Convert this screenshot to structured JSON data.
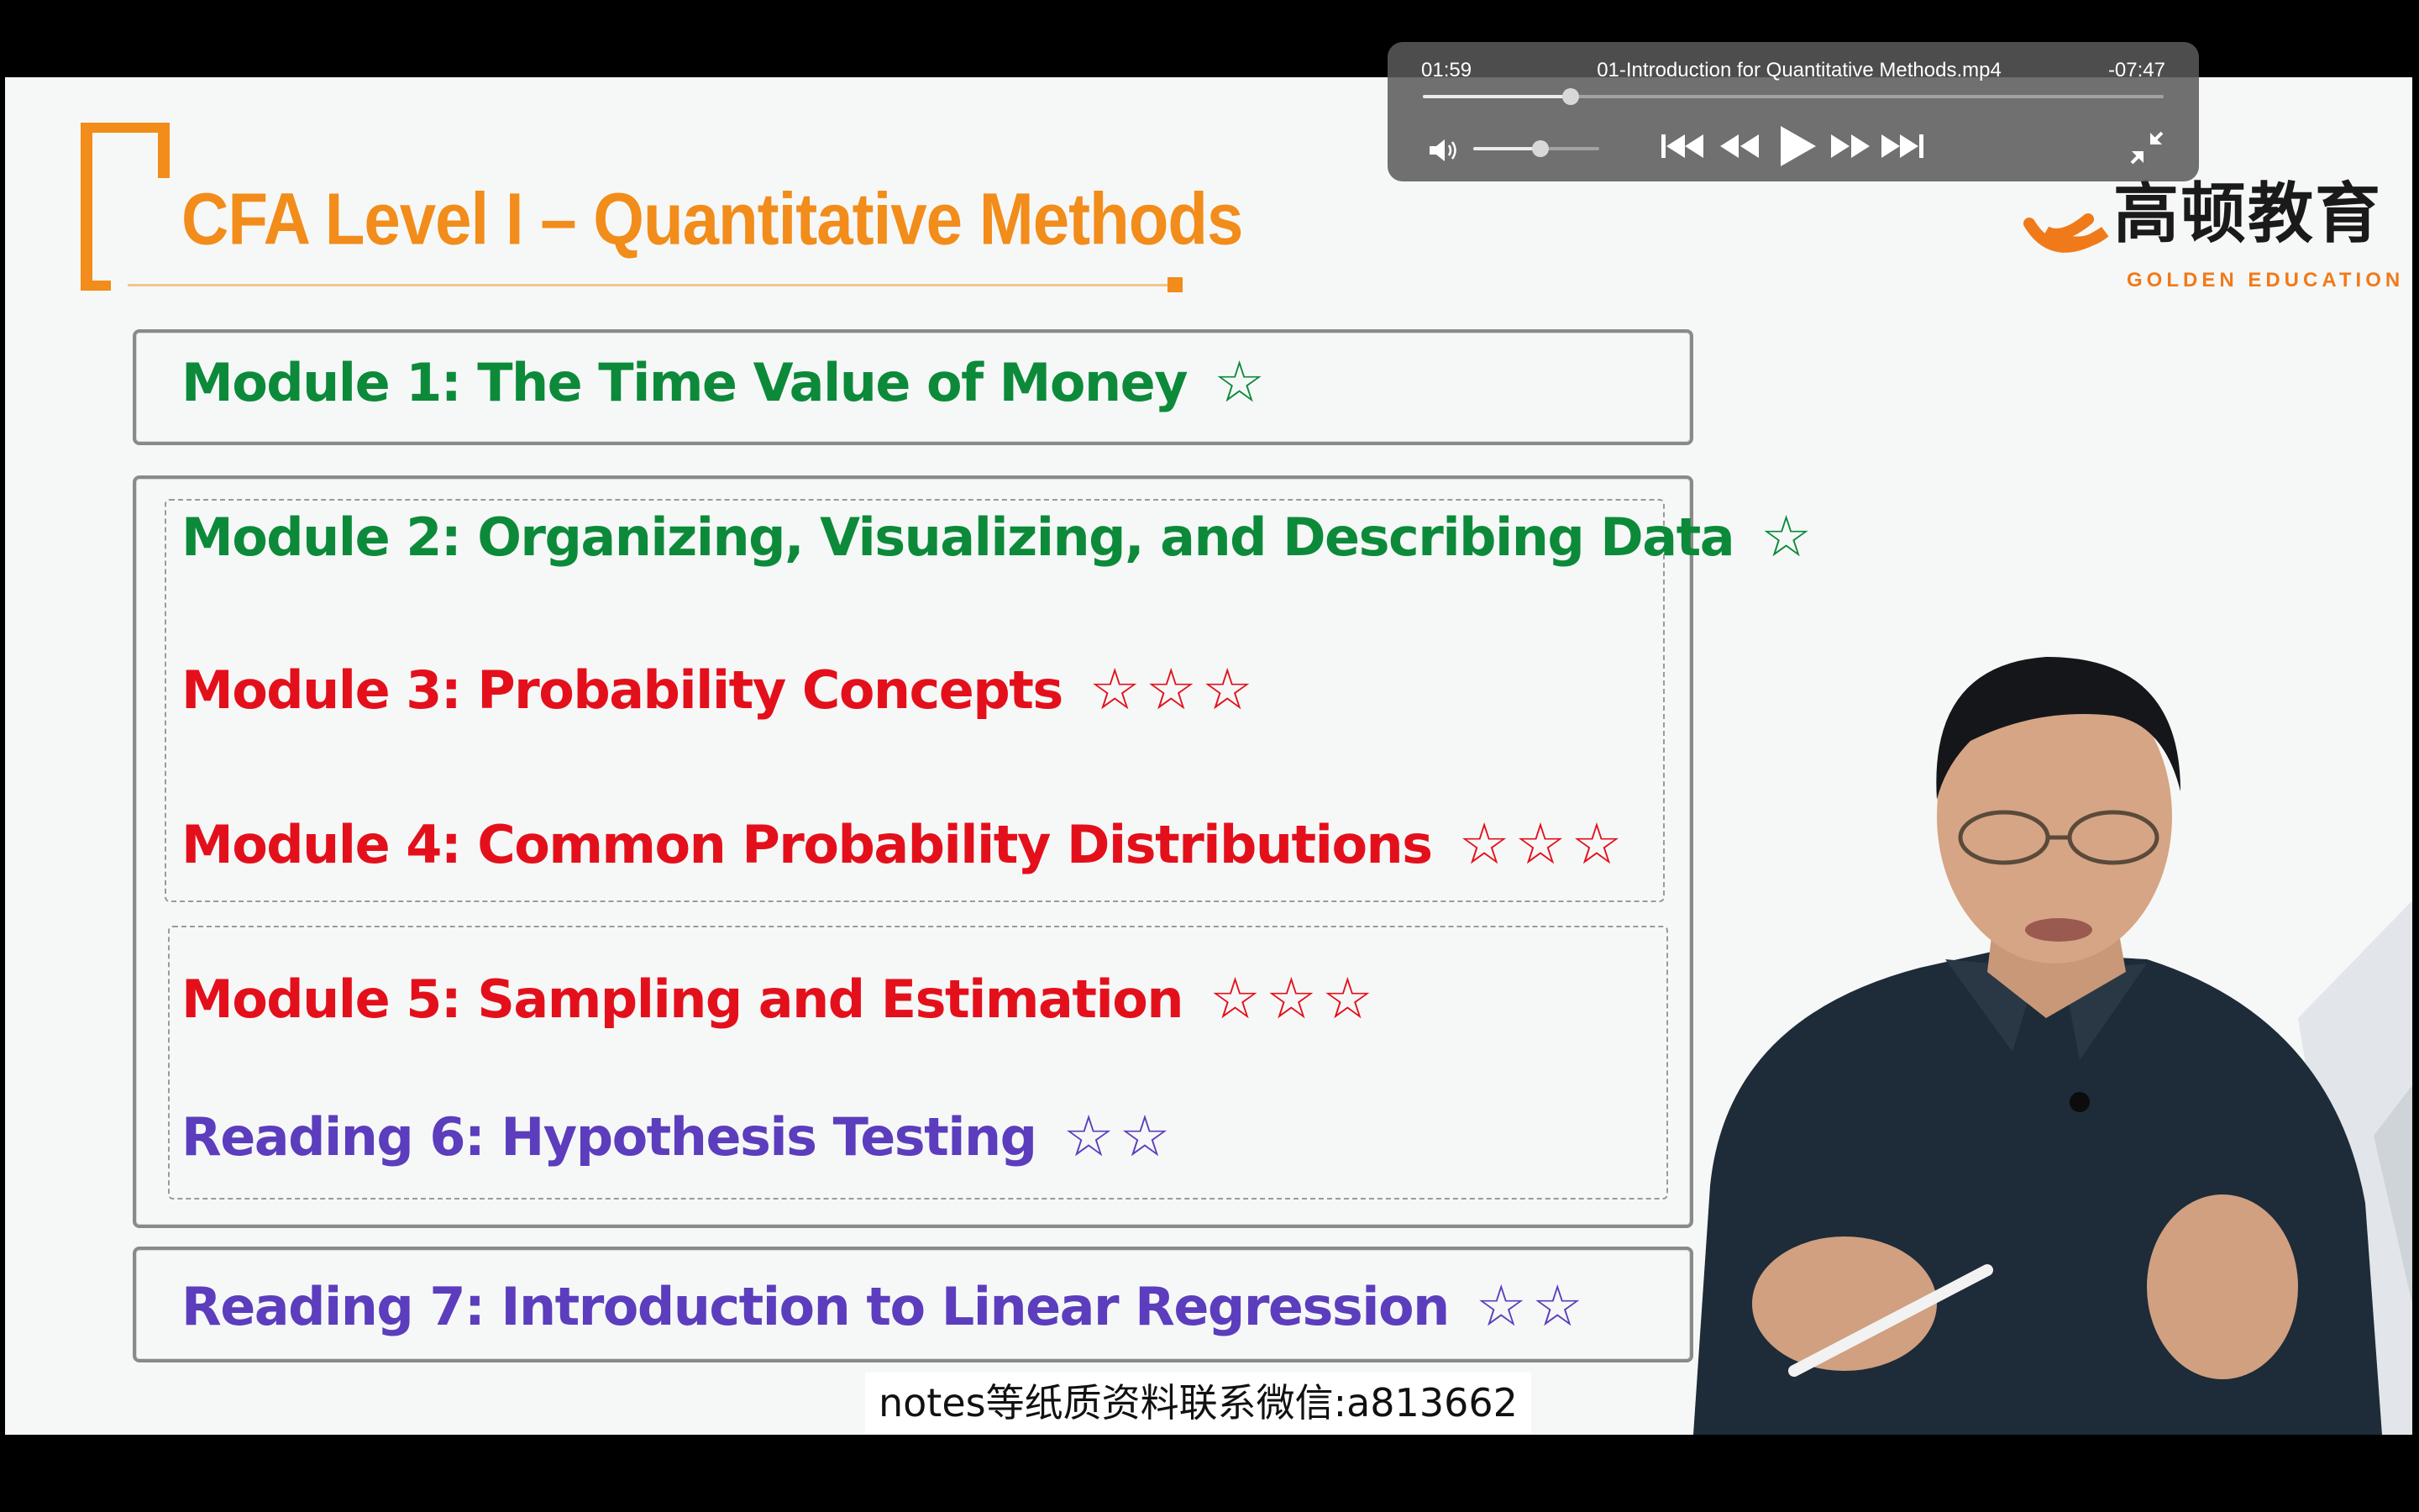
{
  "slide": {
    "title": "CFA Level I – Quantitative Methods",
    "modules": [
      {
        "label": "Module 1: The Time Value of Money",
        "stars": "☆",
        "color": "#0c8a3a"
      },
      {
        "label": "Module 2: Organizing, Visualizing, and Describing Data",
        "stars": "☆",
        "color": "#0c8a3a"
      },
      {
        "label": "Module 3: Probability Concepts",
        "stars": "☆☆☆",
        "color": "#e3101c"
      },
      {
        "label": "Module 4: Common Probability Distributions",
        "stars": "☆☆☆",
        "color": "#e3101c"
      },
      {
        "label": "Module 5: Sampling and Estimation",
        "stars": "☆☆☆",
        "color": "#e3101c"
      },
      {
        "label": "Reading 6: Hypothesis Testing",
        "stars": "☆☆",
        "color": "#5b3dbd"
      },
      {
        "label": "Reading 7: Introduction to Linear Regression",
        "stars": "☆☆",
        "color": "#5b3dbd"
      }
    ],
    "logo": {
      "chinese": "高顿教育",
      "english": "GOLDEN EDUCATION"
    }
  },
  "caption": "notes等纸质资料联系微信:a813662",
  "player": {
    "elapsed": "01:59",
    "remaining": "-07:47",
    "file_name": "01-Introduction for Quantitative Methods.mp4",
    "progress_fraction": 0.2,
    "volume_fraction": 0.53,
    "icons": [
      "volume-icon",
      "skip-back-icon",
      "rewind-icon",
      "play-icon",
      "fast-forward-icon",
      "skip-forward-icon",
      "exit-fullscreen-icon"
    ]
  },
  "colors": {
    "title_orange": "#f28c1a",
    "green": "#0c8a3a",
    "red": "#e3101c",
    "purple": "#5b3dbd"
  }
}
